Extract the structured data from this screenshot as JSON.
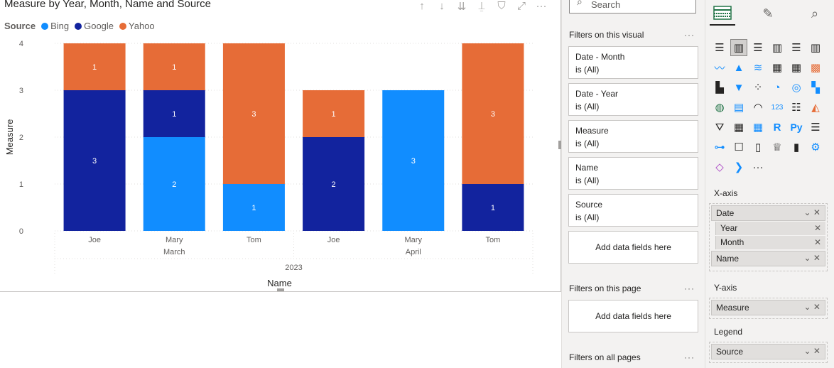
{
  "visual": {
    "title": "Measure by Year, Month, Name and Source",
    "legend_title": "Source",
    "legend": [
      {
        "name": "Bing",
        "color": "#118dff"
      },
      {
        "name": "Google",
        "color": "#12239e"
      },
      {
        "name": "Yahoo",
        "color": "#e66c37"
      }
    ],
    "header_icons": [
      "arrow-up-icon",
      "arrow-down-icon",
      "double-arrow-down-icon",
      "expand-hierarchy-icon",
      "filter-icon",
      "focus-mode-icon",
      "more-options-icon"
    ],
    "more_label": "···"
  },
  "chart_data": {
    "type": "bar",
    "stacked": true,
    "title": "Measure by Year, Month, Name and Source",
    "xlabel": "Name",
    "ylabel": "Measure",
    "ylim": [
      0,
      4
    ],
    "yticks": [
      0,
      1,
      2,
      3,
      4
    ],
    "categories": [
      "Joe",
      "Mary",
      "Tom",
      "Joe",
      "Mary",
      "Tom"
    ],
    "months": [
      {
        "label": "March",
        "span": [
          0,
          2
        ]
      },
      {
        "label": "April",
        "span": [
          3,
          5
        ]
      }
    ],
    "year": "2023",
    "series": [
      {
        "name": "Bing",
        "color": "#118dff",
        "values": [
          0,
          2,
          1,
          0,
          3,
          0
        ]
      },
      {
        "name": "Google",
        "color": "#12239e",
        "values": [
          3,
          1,
          0,
          2,
          0,
          1
        ]
      },
      {
        "name": "Yahoo",
        "color": "#e66c37",
        "values": [
          1,
          1,
          3,
          1,
          0,
          3
        ]
      }
    ],
    "grid": true,
    "legend_position": "top-left"
  },
  "filters_pane": {
    "search_placeholder": "Search",
    "visual_section": "Filters on this visual",
    "filters": [
      {
        "field": "Date - Month",
        "state": "is (All)"
      },
      {
        "field": "Date - Year",
        "state": "is (All)"
      },
      {
        "field": "Measure",
        "state": "is (All)"
      },
      {
        "field": "Name",
        "state": "is (All)"
      },
      {
        "field": "Source",
        "state": "is (All)"
      }
    ],
    "add_fields": "Add data fields here",
    "page_section": "Filters on this page",
    "page_add_fields": "Add data fields here",
    "all_pages_section": "Filters on all pages",
    "more": "···"
  },
  "viz_pane": {
    "tabs": [
      "build-visual-icon",
      "format-visual-icon",
      "analytics-icon"
    ],
    "more_visuals": "···",
    "x_axis_label": "X-axis",
    "x_axis_fields": {
      "date": "Date",
      "year": "Year",
      "month": "Month",
      "name": "Name"
    },
    "y_axis_label": "Y-axis",
    "y_axis_field": "Measure",
    "legend_label": "Legend",
    "legend_field": "Source"
  }
}
